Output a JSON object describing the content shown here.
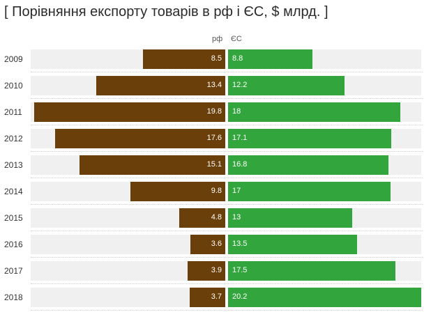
{
  "title": "[ Порівняння експорту товарів в рф і ЄС, $ млрд. ]",
  "chart_data": {
    "type": "bar",
    "orientation": "horizontal-diverging",
    "categories": [
      "2009",
      "2010",
      "2011",
      "2012",
      "2013",
      "2014",
      "2015",
      "2016",
      "2017",
      "2018"
    ],
    "series": [
      {
        "name": "рф",
        "color": "#6b3f0a",
        "values": [
          8.5,
          13.4,
          19.8,
          17.6,
          15.1,
          9.8,
          4.8,
          3.6,
          3.9,
          3.7
        ]
      },
      {
        "name": "ЄС",
        "color": "#32a63c",
        "values": [
          8.8,
          12.2,
          18,
          17.1,
          16.8,
          17,
          13,
          13.5,
          17.5,
          20.2
        ]
      }
    ],
    "grid": false
  }
}
